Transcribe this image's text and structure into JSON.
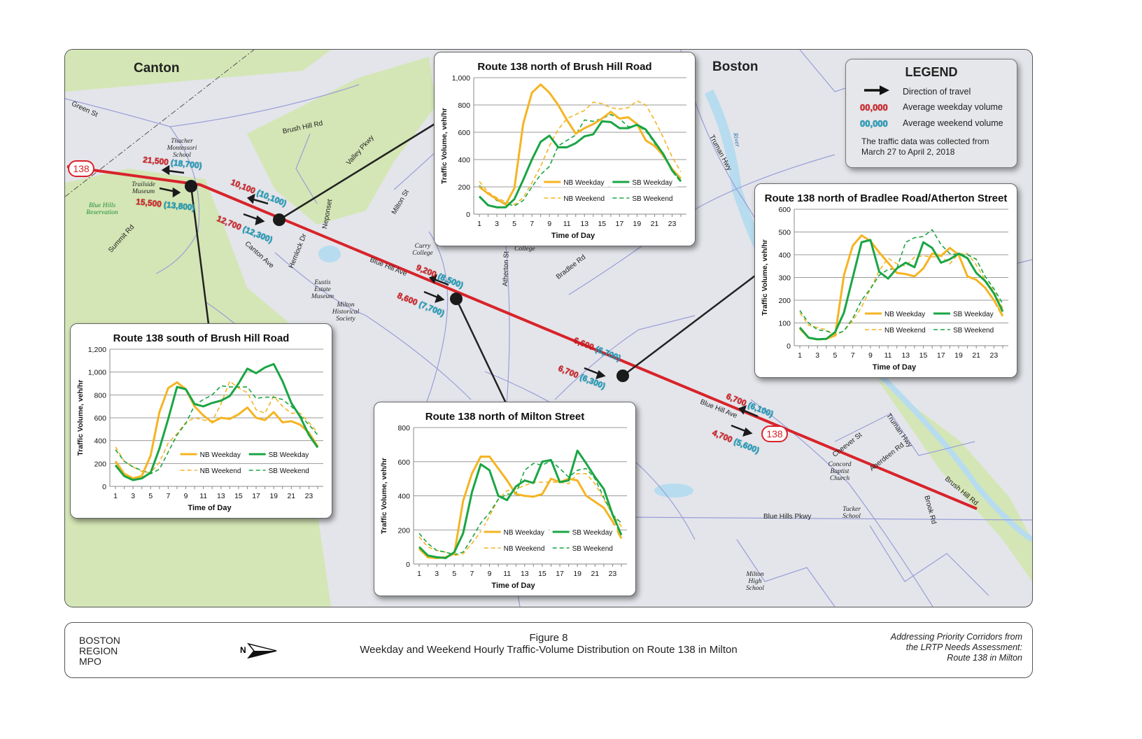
{
  "map": {
    "towns": [
      "Canton",
      "Boston"
    ],
    "route_shield": "138",
    "streets": [
      "Green St",
      "Brush Hill Rd",
      "Valley Pkwy",
      "Truman Hwy",
      "Summit Rd",
      "Neponset",
      "Milton St",
      "Canton Ave",
      "Hemlock Dr",
      "Blue Hill Ave",
      "Atherton St",
      "Bradlee Rd",
      "Blue Hill Ave",
      "Cheever St",
      "Aberdeen Rd",
      "Truman Hwy",
      "Brush Hill Rd",
      "Blue Hills Pkwy",
      "Brook Rd"
    ],
    "places": [
      "Thacher Montessori School",
      "Trailside Museum",
      "Curry College",
      "College",
      "Eustis Estate Museum",
      "Milton Historical Society",
      "Concord Baptist Church",
      "Tucker School",
      "Milton High School"
    ],
    "parks": [
      "Blue Hills Reservation"
    ],
    "water": [
      "River"
    ],
    "volumes": [
      {
        "weekday": "21,500",
        "weekend": "(18,700)"
      },
      {
        "weekday": "15,500",
        "weekend": "(13,800)"
      },
      {
        "weekday": "10,100",
        "weekend": "(10,100)"
      },
      {
        "weekday": "12,700",
        "weekend": "(12,300)"
      },
      {
        "weekday": "9,200",
        "weekend": "(8,500)"
      },
      {
        "weekday": "8,600",
        "weekend": "(7,700)"
      },
      {
        "weekday": "6,600",
        "weekend": "(6,700)"
      },
      {
        "weekday": "6,700",
        "weekend": "(6,300)"
      },
      {
        "weekday": "6,700",
        "weekend": "(6,100)"
      },
      {
        "weekday": "4,700",
        "weekend": "(5,600)"
      }
    ],
    "colors": {
      "route": "#d8232a",
      "weekday": "#d8232a",
      "weekend": "#1aa3c4",
      "park": "#d4e6b5",
      "road": "#9a9ed8",
      "water": "#b7dcef"
    }
  },
  "legend": {
    "title": "LEGEND",
    "direction": "Direction of travel",
    "weekday_sample": "00,000",
    "weekday": "Average weekday volume",
    "weekend_sample": "00,000",
    "weekend": "Average weekend volume",
    "note": "The traffic data was collected from March 27 to April 2, 2018"
  },
  "footer": {
    "org": [
      "BOSTON",
      "REGION",
      "MPO"
    ],
    "north_arrow": "N",
    "figure": "Figure 8",
    "caption": "Weekday and Weekend Hourly Traffic-Volume Distribution on Route 138 in Milton",
    "study": [
      "Addressing Priority Corridors from",
      "the LRTP Needs Assessment:",
      "Route 138 in Milton"
    ]
  },
  "chart_data": [
    {
      "type": "line",
      "title": "Route 138 north of Brush Hill Road",
      "xlabel": "Time of Day",
      "ylabel": "Traffic Volume, veh/hr",
      "ylim": [
        0,
        1000
      ],
      "yticks": [
        "0",
        "200",
        "400",
        "600",
        "800",
        "1,000"
      ],
      "xticks": [
        "1",
        "3",
        "5",
        "7",
        "9",
        "11",
        "13",
        "15",
        "17",
        "19",
        "21",
        "23"
      ],
      "x": [
        1,
        2,
        3,
        4,
        5,
        6,
        7,
        8,
        9,
        10,
        11,
        12,
        13,
        14,
        15,
        16,
        17,
        18,
        19,
        20,
        21,
        22,
        23,
        24
      ],
      "grid": true,
      "legend": "bottom-right",
      "series": [
        {
          "name": "NB Weekday",
          "color": "#f5b423",
          "dash": false,
          "values": [
            200,
            150,
            110,
            70,
            190,
            660,
            890,
            950,
            890,
            800,
            690,
            590,
            630,
            660,
            700,
            750,
            700,
            710,
            660,
            540,
            500,
            430,
            330,
            260
          ]
        },
        {
          "name": "SB Weekday",
          "color": "#1aa544",
          "dash": false,
          "values": [
            130,
            65,
            50,
            50,
            110,
            250,
            400,
            530,
            575,
            490,
            490,
            520,
            570,
            585,
            680,
            675,
            630,
            630,
            655,
            620,
            530,
            440,
            320,
            240
          ]
        },
        {
          "name": "NB Weekend",
          "color": "#f5b423",
          "dash": true,
          "values": [
            240,
            160,
            120,
            90,
            70,
            120,
            230,
            350,
            500,
            620,
            700,
            730,
            760,
            820,
            810,
            780,
            770,
            780,
            830,
            800,
            690,
            560,
            420,
            310
          ]
        },
        {
          "name": "SB Weekend",
          "color": "#1aa544",
          "dash": true,
          "values": [
            210,
            150,
            100,
            80,
            60,
            100,
            200,
            290,
            350,
            500,
            540,
            580,
            690,
            680,
            700,
            730,
            700,
            640,
            650,
            610,
            520,
            420,
            330,
            260
          ]
        }
      ]
    },
    {
      "type": "line",
      "title": "Route 138 north of Bradlee Road/Atherton Street",
      "xlabel": "Time of Day",
      "ylabel": "Traffic Volume, veh/hr",
      "ylim": [
        0,
        600
      ],
      "yticks": [
        "0",
        "100",
        "200",
        "300",
        "400",
        "500",
        "600"
      ],
      "xticks": [
        "1",
        "3",
        "5",
        "7",
        "9",
        "11",
        "13",
        "15",
        "17",
        "19",
        "21",
        "23"
      ],
      "x": [
        1,
        2,
        3,
        4,
        5,
        6,
        7,
        8,
        9,
        10,
        11,
        12,
        13,
        14,
        15,
        16,
        17,
        18,
        19,
        20,
        21,
        22,
        23,
        24
      ],
      "grid": true,
      "legend": "bottom-right",
      "series": [
        {
          "name": "NB Weekday",
          "color": "#f5b423",
          "dash": false,
          "values": [
            75,
            35,
            28,
            30,
            45,
            310,
            440,
            485,
            460,
            410,
            365,
            320,
            315,
            305,
            340,
            405,
            395,
            430,
            400,
            305,
            290,
            255,
            200,
            130
          ]
        },
        {
          "name": "SB Weekday",
          "color": "#1aa544",
          "dash": false,
          "values": [
            80,
            35,
            28,
            30,
            60,
            145,
            300,
            455,
            465,
            325,
            295,
            340,
            365,
            345,
            455,
            430,
            365,
            380,
            405,
            385,
            320,
            285,
            230,
            150
          ]
        },
        {
          "name": "NB Weekend",
          "color": "#f5b423",
          "dash": true,
          "values": [
            145,
            90,
            80,
            70,
            45,
            65,
            110,
            170,
            250,
            330,
            385,
            360,
            350,
            390,
            395,
            390,
            395,
            360,
            405,
            405,
            355,
            290,
            240,
            165
          ]
        },
        {
          "name": "SB Weekend",
          "color": "#1aa544",
          "dash": true,
          "values": [
            155,
            100,
            70,
            65,
            50,
            65,
            120,
            200,
            250,
            310,
            335,
            340,
            455,
            475,
            480,
            510,
            445,
            405,
            400,
            400,
            380,
            305,
            250,
            185
          ]
        }
      ]
    },
    {
      "type": "line",
      "title": "Route 138 south of Brush Hill Road",
      "xlabel": "Time of Day",
      "ylabel": "Traffic Volume, veh/hr",
      "ylim": [
        0,
        1200
      ],
      "yticks": [
        "0",
        "200",
        "400",
        "600",
        "800",
        "1,000",
        "1,200"
      ],
      "xticks": [
        "1",
        "3",
        "5",
        "7",
        "9",
        "11",
        "13",
        "15",
        "17",
        "19",
        "21",
        "23"
      ],
      "x": [
        1,
        2,
        3,
        4,
        5,
        6,
        7,
        8,
        9,
        10,
        11,
        12,
        13,
        14,
        15,
        16,
        17,
        18,
        19,
        20,
        21,
        22,
        23,
        24
      ],
      "grid": true,
      "legend": "bottom-right",
      "series": [
        {
          "name": "NB Weekday",
          "color": "#f5b423",
          "dash": false,
          "values": [
            220,
            110,
            70,
            90,
            270,
            650,
            860,
            910,
            850,
            700,
            620,
            560,
            600,
            590,
            630,
            690,
            600,
            580,
            650,
            560,
            570,
            540,
            470,
            350
          ]
        },
        {
          "name": "SB Weekday",
          "color": "#1aa544",
          "dash": false,
          "values": [
            185,
            90,
            55,
            70,
            120,
            330,
            590,
            870,
            850,
            720,
            700,
            730,
            750,
            790,
            900,
            1030,
            990,
            1040,
            1070,
            920,
            730,
            610,
            450,
            340
          ]
        },
        {
          "name": "NB Weekend",
          "color": "#f5b423",
          "dash": true,
          "values": [
            345,
            220,
            170,
            130,
            120,
            210,
            380,
            460,
            560,
            600,
            580,
            570,
            720,
            920,
            860,
            820,
            670,
            640,
            790,
            700,
            640,
            640,
            560,
            470
          ]
        },
        {
          "name": "SB Weekend",
          "color": "#1aa544",
          "dash": true,
          "values": [
            320,
            220,
            170,
            140,
            110,
            150,
            300,
            450,
            550,
            710,
            760,
            800,
            880,
            870,
            870,
            870,
            770,
            780,
            780,
            760,
            700,
            620,
            540,
            450
          ]
        }
      ]
    },
    {
      "type": "line",
      "title": "Route 138 north of Milton Street",
      "xlabel": "Time of Day",
      "ylabel": "Traffic Volume, veh/hr",
      "ylim": [
        0,
        800
      ],
      "yticks": [
        "0",
        "200",
        "400",
        "600",
        "800"
      ],
      "xticks": [
        "1",
        "3",
        "5",
        "7",
        "9",
        "11",
        "13",
        "15",
        "17",
        "19",
        "21",
        "23"
      ],
      "x": [
        1,
        2,
        3,
        4,
        5,
        6,
        7,
        8,
        9,
        10,
        11,
        12,
        13,
        14,
        15,
        16,
        17,
        18,
        19,
        20,
        21,
        22,
        23,
        24
      ],
      "grid": true,
      "legend": "bottom-right",
      "series": [
        {
          "name": "NB Weekday",
          "color": "#f5b423",
          "dash": false,
          "values": [
            90,
            40,
            35,
            40,
            60,
            370,
            530,
            630,
            630,
            560,
            490,
            410,
            400,
            395,
            410,
            500,
            480,
            500,
            490,
            400,
            365,
            330,
            250,
            150
          ]
        },
        {
          "name": "SB Weekday",
          "color": "#1aa544",
          "dash": false,
          "values": [
            100,
            50,
            40,
            35,
            70,
            180,
            420,
            585,
            550,
            400,
            375,
            455,
            490,
            475,
            600,
            610,
            480,
            490,
            665,
            590,
            510,
            440,
            290,
            170
          ]
        },
        {
          "name": "NB Weekend",
          "color": "#f5b423",
          "dash": true,
          "values": [
            160,
            100,
            80,
            70,
            50,
            60,
            120,
            190,
            280,
            380,
            430,
            440,
            460,
            480,
            480,
            480,
            480,
            470,
            530,
            530,
            470,
            380,
            290,
            220
          ]
        },
        {
          "name": "SB Weekend",
          "color": "#1aa544",
          "dash": true,
          "values": [
            180,
            120,
            80,
            70,
            55,
            70,
            150,
            240,
            300,
            380,
            410,
            410,
            550,
            590,
            580,
            605,
            560,
            510,
            550,
            560,
            500,
            390,
            290,
            240
          ]
        }
      ]
    }
  ]
}
